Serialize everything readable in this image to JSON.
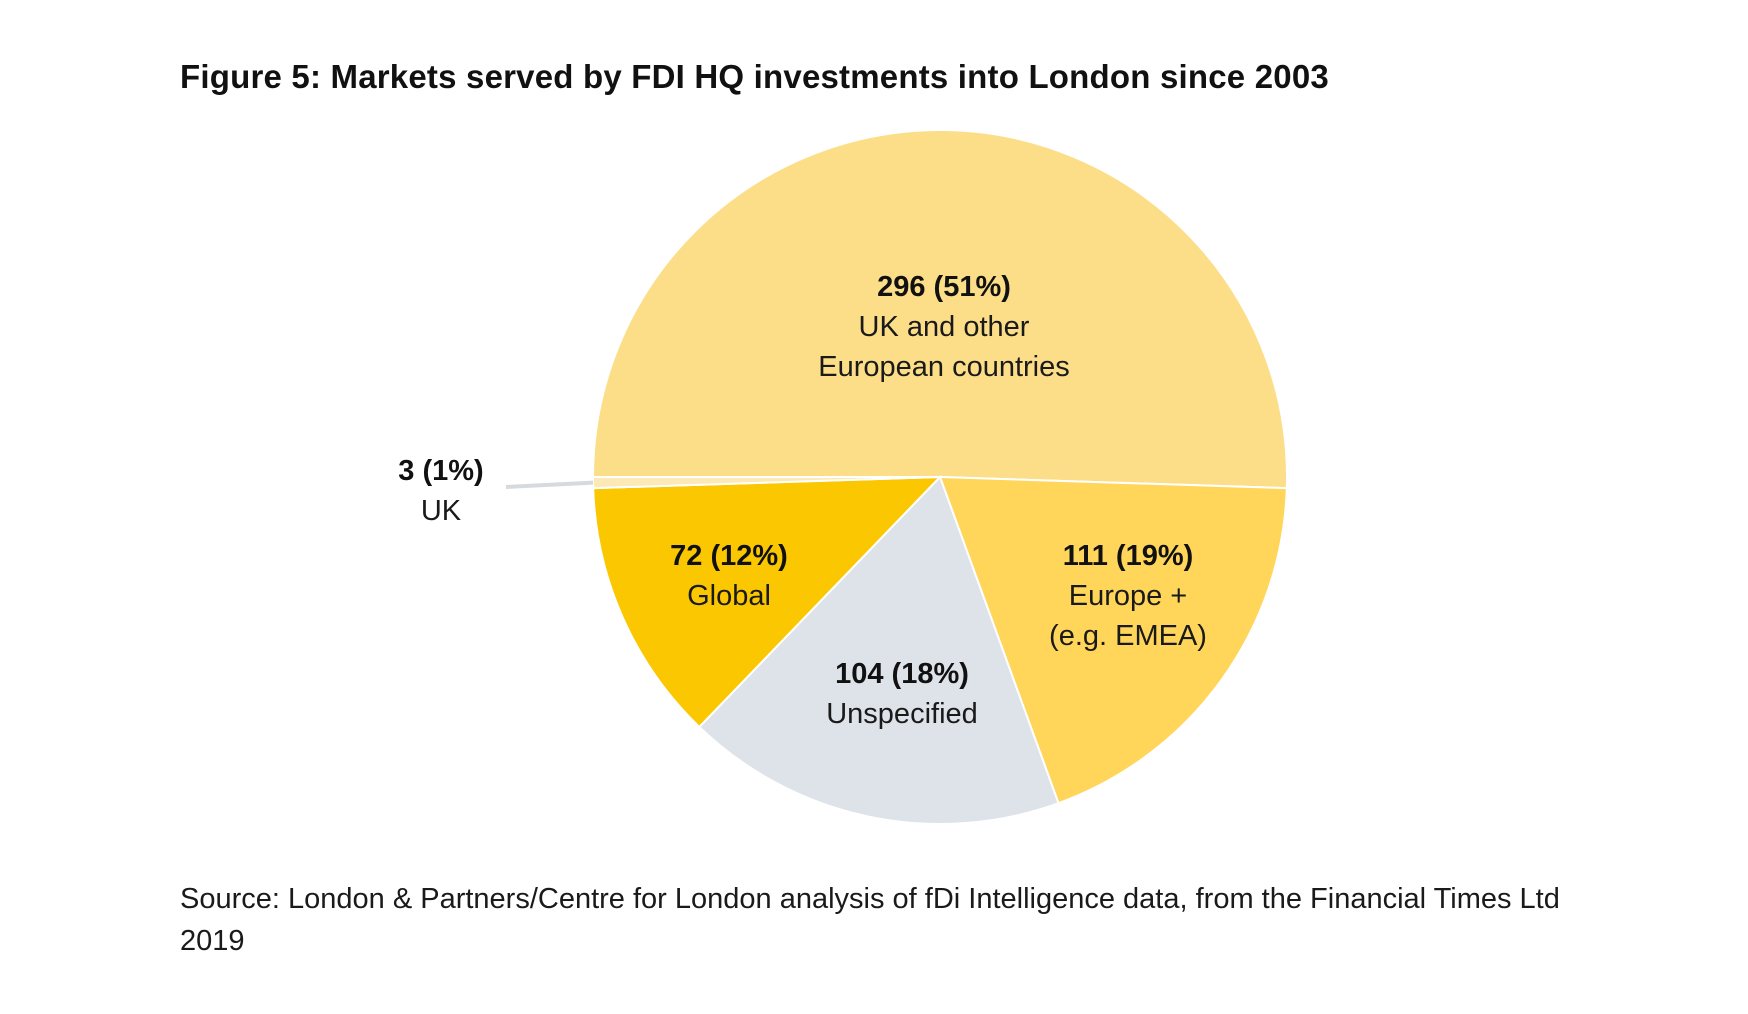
{
  "chart_data": {
    "type": "pie",
    "title": "Figure 5: Markets served by FDI HQ investments into London since 2003",
    "source": "Source: London & Partners/Centre for London analysis of fDi Intelligence data, from the Financial Times Ltd 2019",
    "slices": [
      {
        "key": "uk-europe",
        "value": 296,
        "value_label": "296 (51%)",
        "label_lines": [
          "UK and other",
          "European countries"
        ],
        "color": "#FDDE88"
      },
      {
        "key": "europe-plus",
        "value": 111,
        "value_label": "111 (19%)",
        "label_lines": [
          "Europe +",
          "(e.g. EMEA)"
        ],
        "color": "#FFD55A"
      },
      {
        "key": "unspecified",
        "value": 104,
        "value_label": "104 (18%)",
        "label_lines": [
          "Unspecified"
        ],
        "color": "#DDE3E9"
      },
      {
        "key": "global",
        "value": 72,
        "value_label": "72 (12%)",
        "label_lines": [
          "Global"
        ],
        "color": "#FBC700"
      },
      {
        "key": "uk",
        "value": 3,
        "value_label": "3 (1%)",
        "label_lines": [
          "UK"
        ],
        "color": "#FDE9B5"
      }
    ],
    "start_angle_deg": 180,
    "direction": "clockwise",
    "legend": "none"
  }
}
